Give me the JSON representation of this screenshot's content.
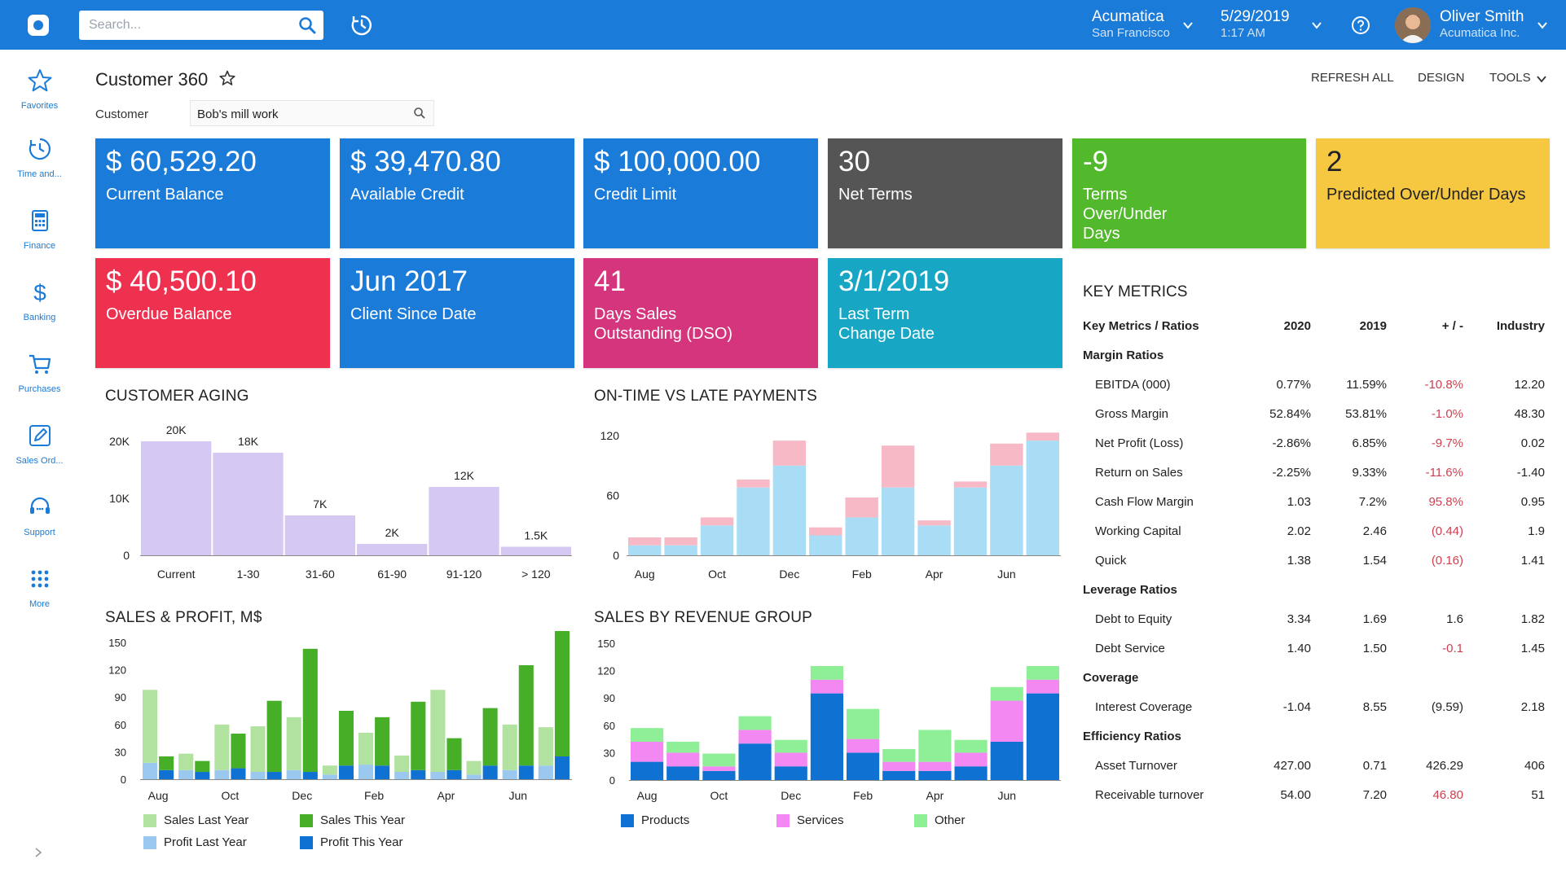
{
  "topbar": {
    "search_placeholder": "Search...",
    "company": "Acumatica",
    "branch": "San Francisco",
    "date": "5/29/2019",
    "time": "1:17 AM",
    "user_name": "Oliver Smith",
    "user_company": "Acumatica Inc."
  },
  "sidebar": {
    "items": [
      {
        "label": "Favorites",
        "icon": "star-icon"
      },
      {
        "label": "Time and...",
        "icon": "clock-icon"
      },
      {
        "label": "Finance",
        "icon": "calculator-icon"
      },
      {
        "label": "Banking",
        "icon": "dollar-icon"
      },
      {
        "label": "Purchases",
        "icon": "cart-icon"
      },
      {
        "label": "Sales Ord...",
        "icon": "pencil-icon"
      },
      {
        "label": "Support",
        "icon": "headset-icon"
      },
      {
        "label": "More",
        "icon": "grid-icon"
      }
    ]
  },
  "page": {
    "title": "Customer 360",
    "actions": {
      "refresh": "REFRESH ALL",
      "design": "DESIGN",
      "tools": "TOOLS"
    },
    "customer_label": "Customer",
    "customer_value": "Bob's mill work"
  },
  "colors": {
    "blue": "#1a7bd8",
    "gray": "#555555",
    "green": "#52b82c",
    "yellow": "#f6c842",
    "red": "#ef3150",
    "pink": "#d4357c",
    "teal": "#17a7c5"
  },
  "tiles": [
    {
      "value": "$ 60,529.20",
      "label": "Current Balance",
      "color": "blue"
    },
    {
      "value": "$ 39,470.80",
      "label": "Available Credit",
      "color": "blue"
    },
    {
      "value": "$ 100,000.00",
      "label": "Credit Limit",
      "color": "blue"
    },
    {
      "value": "30",
      "label": "Net Terms",
      "color": "gray"
    },
    {
      "value": "-9",
      "label": "Terms Over/Under Days",
      "color": "green"
    },
    {
      "value": "2",
      "label": "Predicted Over/Under Days",
      "color": "yellow"
    },
    {
      "value": "$ 40,500.10",
      "label": "Overdue Balance",
      "color": "red"
    },
    {
      "value": "Jun 2017",
      "label": "Client Since Date",
      "color": "blue"
    },
    {
      "value": "41",
      "label": "Days Sales Outstanding (DSO)",
      "color": "pink"
    },
    {
      "value": "3/1/2019",
      "label": "Last Term Change Date",
      "color": "teal"
    }
  ],
  "key_metrics": {
    "title": "KEY METRICS",
    "headers": [
      "Key Metrics / Ratios",
      "2020",
      "2019",
      "+ / -",
      "Industry"
    ],
    "groups": [
      {
        "name": "Margin Ratios",
        "rows": [
          [
            "EBITDA (000)",
            "0.77%",
            "11.59%",
            "-10.8%",
            "12.20"
          ],
          [
            "Gross Margin",
            "52.84%",
            "53.81%",
            "-1.0%",
            "48.30"
          ],
          [
            "Net Profit (Loss)",
            "-2.86%",
            "6.85%",
            "-9.7%",
            "0.02"
          ],
          [
            "Return on Sales",
            "-2.25%",
            "9.33%",
            "-11.6%",
            "-1.40"
          ],
          [
            "Cash Flow Margin",
            "1.03",
            "7.2%",
            "95.8%",
            "0.95"
          ],
          [
            "Working Capital",
            "2.02",
            "2.46",
            "(0.44)",
            "1.9"
          ],
          [
            "Quick",
            "1.38",
            "1.54",
            "(0.16)",
            "1.41"
          ]
        ]
      },
      {
        "name": "Leverage Ratios",
        "rows": [
          [
            "Debt to Equity",
            "3.34",
            "1.69",
            "1.6",
            "1.82"
          ],
          [
            "Debt Service",
            "1.40",
            "1.50",
            "-0.1",
            "1.45"
          ]
        ]
      },
      {
        "name": "Coverage",
        "rows": [
          [
            "Interest Coverage",
            "-1.04",
            "8.55",
            "(9.59)",
            "2.18"
          ]
        ]
      },
      {
        "name": "Efficiency Ratios",
        "rows": [
          [
            "Asset Turnover",
            "427.00",
            "0.71",
            "426.29",
            "406"
          ],
          [
            "Receivable turnover",
            "54.00",
            "7.20",
            "46.80",
            "51"
          ]
        ]
      }
    ],
    "red_delta_rows": [
      "EBITDA (000)",
      "Gross Margin",
      "Net Profit (Loss)",
      "Return on Sales",
      "Cash Flow Margin",
      "Working Capital",
      "Quick",
      "Debt Service",
      "Receivable turnover"
    ]
  },
  "chart_data": [
    {
      "title": "CUSTOMER AGING",
      "type": "bar",
      "categories": [
        "Current",
        "1-30",
        "31-60",
        "61-90",
        "91-120",
        "> 120"
      ],
      "values": [
        20000,
        18000,
        7000,
        2000,
        12000,
        1500
      ],
      "data_labels": [
        "20K",
        "18K",
        "7K",
        "2K",
        "12K",
        "1.5K"
      ],
      "y_ticks": [
        "0",
        "10K",
        "20K"
      ],
      "ylim": [
        0,
        20000
      ],
      "color": "#d5c9f4"
    },
    {
      "title": "ON-TIME VS LATE PAYMENTS",
      "type": "bar",
      "stacked": true,
      "x_tick_labels": [
        "Aug",
        "Oct",
        "Dec",
        "Feb",
        "Apr",
        "Jun"
      ],
      "y_ticks": [
        "0",
        "60",
        "120"
      ],
      "ylim": [
        0,
        120
      ],
      "series": [
        {
          "values": [
            10,
            10,
            30,
            68,
            90,
            20,
            38,
            68,
            30,
            68,
            90,
            115
          ],
          "color": "#a9dcf5"
        },
        {
          "values": [
            8,
            8,
            8,
            8,
            25,
            8,
            20,
            42,
            5,
            6,
            22,
            8
          ],
          "color": "#f7b9c5"
        }
      ]
    },
    {
      "title": "SALES & PROFIT, M$",
      "type": "bar",
      "stacked": true,
      "x_tick_labels": [
        "Aug",
        "Oct",
        "Dec",
        "Feb",
        "Apr",
        "Jun"
      ],
      "y_ticks": [
        "0",
        "30",
        "60",
        "90",
        "120",
        "150"
      ],
      "ylim": [
        0,
        150
      ],
      "groups": 12,
      "series": [
        {
          "name": "Sales Last Year",
          "values": [
            80,
            18,
            50,
            50,
            58,
            10,
            35,
            18,
            90,
            15,
            50,
            42
          ],
          "color": "#b2e2a0",
          "stack": "last"
        },
        {
          "name": "Profit Last Year",
          "values": [
            18,
            10,
            10,
            8,
            10,
            5,
            16,
            8,
            8,
            5,
            10,
            15
          ],
          "color": "#9ac8ee",
          "stack": "last"
        },
        {
          "name": "Sales This Year",
          "values": [
            15,
            12,
            38,
            78,
            135,
            60,
            53,
            75,
            35,
            63,
            110,
            140
          ],
          "color": "#46ae27",
          "stack": "this"
        },
        {
          "name": "Profit This Year",
          "values": [
            10,
            8,
            12,
            8,
            8,
            15,
            15,
            10,
            10,
            15,
            15,
            25
          ],
          "color": "#0f72d2",
          "stack": "this"
        }
      ]
    },
    {
      "title": "SALES BY REVENUE GROUP",
      "type": "bar",
      "stacked": true,
      "x_tick_labels": [
        "Aug",
        "Oct",
        "Dec",
        "Feb",
        "Apr",
        "Jun"
      ],
      "y_ticks": [
        "0",
        "30",
        "60",
        "90",
        "120",
        "150"
      ],
      "ylim": [
        0,
        150
      ],
      "series": [
        {
          "name": "Products",
          "values": [
            20,
            15,
            10,
            40,
            15,
            95,
            30,
            10,
            10,
            15,
            42,
            95
          ],
          "color": "#0f72d2"
        },
        {
          "name": "Services",
          "values": [
            22,
            15,
            5,
            15,
            15,
            15,
            15,
            10,
            10,
            15,
            45,
            15
          ],
          "color": "#f388f2"
        },
        {
          "name": "Other",
          "values": [
            15,
            12,
            14,
            15,
            14,
            15,
            33,
            14,
            35,
            14,
            15,
            15
          ],
          "color": "#8fef97"
        }
      ]
    }
  ]
}
